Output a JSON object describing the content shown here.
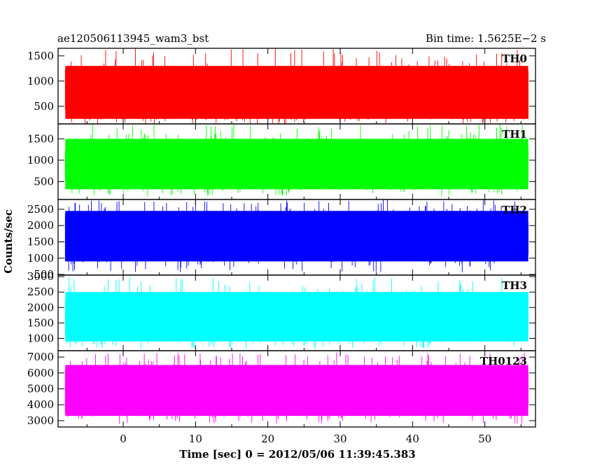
{
  "header": {
    "title": "ae120506113945_wam3_bst",
    "bin_time": "Bin time: 1.5625E−2 s"
  },
  "chart_data": {
    "type": "line",
    "title": "ae120506113945_wam3_bst",
    "xlabel": "Time [sec] 0 = 2012/05/06 11:39:45.383",
    "ylabel": "Counts/sec",
    "xlim": [
      -9,
      57
    ],
    "x_data_range": [
      -8,
      56
    ],
    "x_ticks": [
      0,
      10,
      20,
      30,
      40,
      50
    ],
    "panels": [
      {
        "name": "TH0",
        "color": "#ff0000",
        "ylim": [
          150,
          1650
        ],
        "y_ticks": [
          500,
          1000,
          1500
        ],
        "level_mean": 800,
        "level_low": 150,
        "level_high": 1650,
        "band_low": 250,
        "band_high": 1300
      },
      {
        "name": "TH1",
        "color": "#00ff00",
        "ylim": [
          80,
          1850
        ],
        "y_ticks": [
          500,
          1000,
          1500
        ],
        "level_mean": 900,
        "level_low": 150,
        "level_high": 1850,
        "band_low": 320,
        "band_high": 1500
      },
      {
        "name": "TH2",
        "color": "#0000ff",
        "ylim": [
          480,
          2800
        ],
        "y_ticks": [
          500,
          1000,
          1500,
          2000,
          2500
        ],
        "level_mean": 1600,
        "level_low": 560,
        "level_high": 2800,
        "band_low": 900,
        "band_high": 2450
      },
      {
        "name": "TH3",
        "color": "#00ffff",
        "ylim": [
          600,
          3050
        ],
        "y_ticks": [
          1000,
          1500,
          2000,
          2500,
          3000
        ],
        "level_mean": 1650,
        "level_low": 650,
        "level_high": 3000,
        "band_low": 900,
        "band_high": 2500
      },
      {
        "name": "TH0123",
        "color": "#ff00ff",
        "ylim": [
          2600,
          7400
        ],
        "y_ticks": [
          3000,
          4000,
          5000,
          6000,
          7000
        ],
        "level_mean": 4900,
        "level_low": 2800,
        "level_high": 7300,
        "band_low": 3300,
        "band_high": 6500
      }
    ]
  }
}
